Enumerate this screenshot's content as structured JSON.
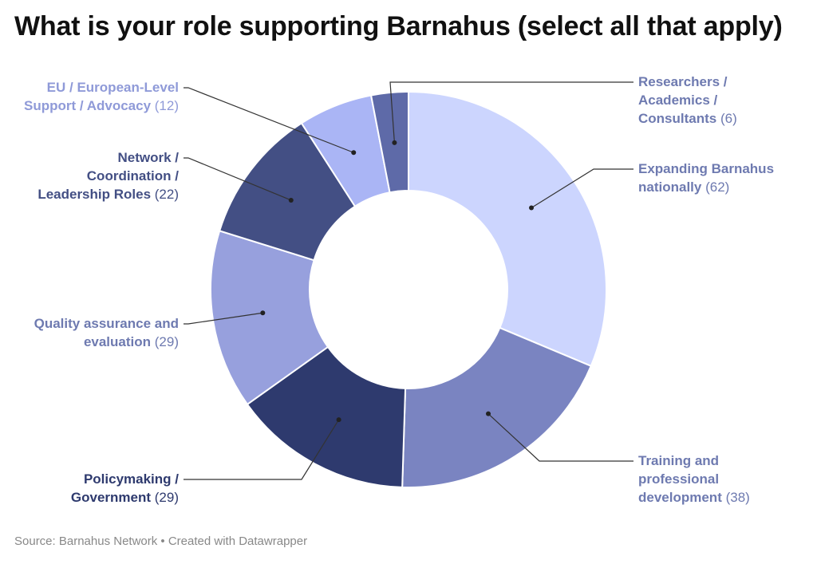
{
  "title": "What is your role supporting Barnahus (select all that apply)",
  "footer": "Source: Barnahus Network • Created with Datawrapper",
  "chart_data": {
    "type": "pie",
    "donut": true,
    "series": [
      {
        "values": [
          62,
          38,
          29,
          29,
          22,
          12,
          6
        ]
      }
    ],
    "categories": [
      "Expanding Barnahus nationally",
      "Training and professional development",
      "Policymaking / Government",
      "Quality assurance and evaluation",
      "Network / Coordination / Leadership Roles",
      "EU / European-Level Support / Advocacy",
      "Researchers / Academics / Consultants"
    ],
    "colors": [
      "#ccd5fe",
      "#7a84c1",
      "#2e3a6e",
      "#97a0dd",
      "#434f84",
      "#aab5f5",
      "#5e6aa8"
    ],
    "labels": [
      {
        "lines": [
          "Expanding Barnahus",
          "nationally"
        ],
        "value": "(62)",
        "color": "#6e7ab0"
      },
      {
        "lines": [
          "Training and",
          "professional",
          "development"
        ],
        "value": "(38)",
        "color": "#6e7ab0"
      },
      {
        "lines": [
          "Policymaking /",
          "Government"
        ],
        "value": "(29)",
        "color": "#2e3a6e"
      },
      {
        "lines": [
          "Quality assurance and",
          "evaluation"
        ],
        "value": "(29)",
        "color": "#6e7ab0"
      },
      {
        "lines": [
          "Network /",
          "Coordination /",
          "Leadership Roles"
        ],
        "value": "(22)",
        "color": "#434f84"
      },
      {
        "lines": [
          "EU / European-Level",
          "Support / Advocacy"
        ],
        "value": "(12)",
        "color": "#8f9ad8"
      },
      {
        "lines": [
          "Researchers /",
          "Academics /",
          "Consultants"
        ],
        "value": "(6)",
        "color": "#6e7ab0"
      }
    ],
    "legend": "none"
  }
}
